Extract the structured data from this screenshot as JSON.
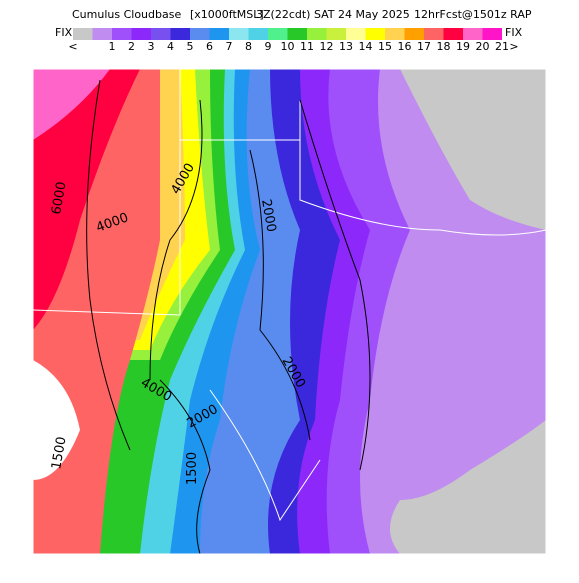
{
  "header": {
    "title": "Cumulus Cloudbase",
    "units": "[x1000ftMSL]",
    "valid": "3Z(22cdt) SAT 24 May 2025",
    "forecast": "12hrFcst@1501z RAP"
  },
  "colorbar": {
    "left_label": "FIX",
    "right_label": "FIX",
    "items": [
      {
        "label": "<",
        "color": "#c8c8c8"
      },
      {
        "label": "1",
        "color": "#c08cf0"
      },
      {
        "label": "2",
        "color": "#a050fa"
      },
      {
        "label": "3",
        "color": "#8c28fa"
      },
      {
        "label": "4",
        "color": "#7850f0"
      },
      {
        "label": "5",
        "color": "#3c28dc"
      },
      {
        "label": "6",
        "color": "#5a8cf0"
      },
      {
        "label": "7",
        "color": "#1e96f0"
      },
      {
        "label": "8",
        "color": "#8ce6f0"
      },
      {
        "label": "9",
        "color": "#50d2e6"
      },
      {
        "label": "10",
        "color": "#50f08c"
      },
      {
        "label": "11",
        "color": "#28c828"
      },
      {
        "label": "12",
        "color": "#96f03c"
      },
      {
        "label": "13",
        "color": "#c8f03c"
      },
      {
        "label": "14",
        "color": "#ffff96"
      },
      {
        "label": "15",
        "color": "#ffff00"
      },
      {
        "label": "16",
        "color": "#ffd250"
      },
      {
        "label": "17",
        "color": "#ffa000"
      },
      {
        "label": "18",
        "color": "#ff6464"
      },
      {
        "label": "19",
        "color": "#ff0040"
      },
      {
        "label": "20",
        "color": "#ff64c8"
      },
      {
        "label": "21",
        "color": "#ff14c8"
      }
    ],
    "end_label": ">"
  },
  "contour_labels": [
    "6000",
    "4000",
    "4000",
    "2000",
    "2000",
    "4000",
    "2000",
    "1500",
    "1500"
  ]
}
